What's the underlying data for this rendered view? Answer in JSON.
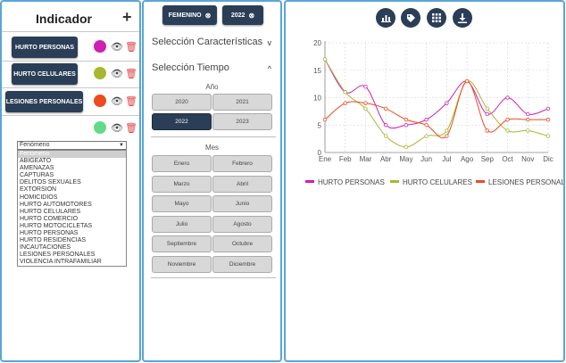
{
  "indicator": {
    "title": "Indicador",
    "add_icon": "+",
    "items": [
      {
        "label": "HURTO PERSONAS",
        "color": "#d01fb3"
      },
      {
        "label": "HURTO CELULARES",
        "color": "#a8b731"
      },
      {
        "label": "LESIONES PERSONALES",
        "color": "#ee4b1f"
      },
      {
        "label": "",
        "color": "#63d98a"
      }
    ],
    "select": {
      "value": "Fenómeno",
      "options": [
        "Fenómeno",
        "ABIGEATO",
        "AMENAZAS",
        "CAPTURAS",
        "DELITOS SEXUALES",
        "EXTORSION",
        "HOMICIDIOS",
        "HURTO AUTOMOTORES",
        "HURTO CELULARES",
        "HURTO COMERCIO",
        "HURTO MOTOCICLETAS",
        "HURTO PERSONAS",
        "HURTO RESIDENCIAS",
        "INCAUTACIONES",
        "LESIONES PERSONALES",
        "VIOLENCIA INTRAFAMILIAR"
      ]
    }
  },
  "filters": {
    "chips": [
      {
        "label": "FEMENINO"
      },
      {
        "label": "2022"
      }
    ],
    "chip_close": "⊗",
    "characteristics": {
      "title": "Selección Características",
      "chevron": "v"
    },
    "time": {
      "title": "Selección Tiempo",
      "chevron": "^",
      "year_label": "Año",
      "years": [
        "2020",
        "2021",
        "2022",
        "2023"
      ],
      "selected_year": "2022",
      "month_label": "Mes",
      "months": [
        "Enero",
        "Febrero",
        "Marzo",
        "Abril",
        "Mayo",
        "Junio",
        "Julio",
        "Agosto",
        "Septiembre",
        "Octubre",
        "Noviembre",
        "Diciembre"
      ]
    }
  },
  "toolbar": {
    "icons": [
      "bar-chart-icon",
      "tag-icon",
      "grid-icon",
      "download-icon"
    ]
  },
  "chart_data": {
    "type": "line",
    "x": [
      "Ene",
      "Feb",
      "Mar",
      "Abr",
      "May",
      "Jun",
      "Jul",
      "Ago",
      "Sep",
      "Oct",
      "Nov",
      "Dic"
    ],
    "ylim": [
      0,
      20
    ],
    "yticks": [
      0,
      5,
      10,
      15,
      20
    ],
    "grid": true,
    "legend_position": "bottom",
    "series": [
      {
        "name": "HURTO PERSONAS",
        "color": "#d01fb3",
        "values": [
          17,
          11,
          12,
          5,
          5,
          6,
          9,
          13,
          7,
          10,
          7,
          8
        ]
      },
      {
        "name": "HURTO CELULARES",
        "color": "#a8b731",
        "values": [
          17,
          11,
          8,
          3,
          1,
          3,
          4,
          13,
          8,
          4,
          4,
          3
        ]
      },
      {
        "name": "LESIONES PERSONALES",
        "color": "#ee4b1f",
        "values": [
          6,
          9,
          9,
          8,
          6,
          5,
          3,
          13,
          4,
          6,
          6,
          6
        ]
      }
    ]
  }
}
